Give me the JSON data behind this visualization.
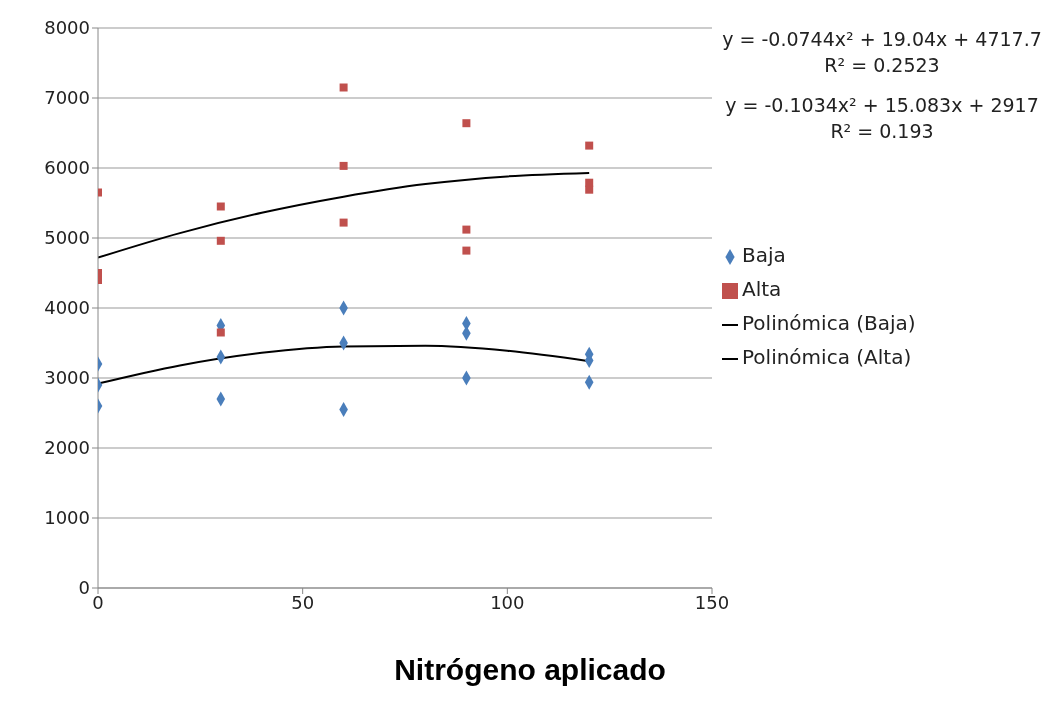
{
  "chart_data": {
    "type": "scatter",
    "xlabel": "Nitrógeno aplicado",
    "xlim": [
      0,
      150
    ],
    "xticks": [
      0,
      50,
      100,
      150
    ],
    "ylim": [
      0,
      8000
    ],
    "yticks": [
      0,
      1000,
      2000,
      3000,
      4000,
      5000,
      6000,
      7000,
      8000
    ],
    "grid": "y",
    "legend": "right",
    "annotations": [
      "y = -0.0744x² + 19.04x + 4717.7",
      "R² = 0.2523",
      "y = -0.1034x² + 15.083x + 2917",
      "R² = 0.193"
    ],
    "series": [
      {
        "name": "Baja",
        "marker": "diamond",
        "color": "#4a7ebb",
        "x": [
          0,
          0,
          0,
          30,
          30,
          30,
          60,
          60,
          60,
          90,
          90,
          90,
          120,
          120,
          120
        ],
        "values": [
          3200,
          2900,
          2600,
          3300,
          2700,
          3750,
          4000,
          3500,
          2550,
          3780,
          3640,
          3000,
          3340,
          3250,
          2940
        ]
      },
      {
        "name": "Alta",
        "marker": "square",
        "color": "#c0504d",
        "x": [
          0,
          0,
          0,
          30,
          30,
          30,
          60,
          60,
          60,
          90,
          90,
          90,
          120,
          120,
          120
        ],
        "values": [
          5650,
          4500,
          4400,
          5450,
          4960,
          3650,
          7150,
          6030,
          5220,
          6640,
          5120,
          4820,
          6320,
          5790,
          5690
        ]
      },
      {
        "name": "Polinómica (Baja)",
        "type": "line",
        "marker": "none",
        "color": "#000000",
        "x": [
          0,
          20,
          40,
          60,
          80,
          100,
          120
        ],
        "values": [
          2920,
          3180,
          3360,
          3450,
          3460,
          3390,
          3240
        ]
      },
      {
        "name": "Polinómica (Alta)",
        "type": "line",
        "marker": "none",
        "color": "#000000",
        "x": [
          0,
          20,
          40,
          60,
          80,
          100,
          120
        ],
        "values": [
          4720,
          5070,
          5360,
          5590,
          5770,
          5880,
          5930
        ]
      }
    ]
  }
}
